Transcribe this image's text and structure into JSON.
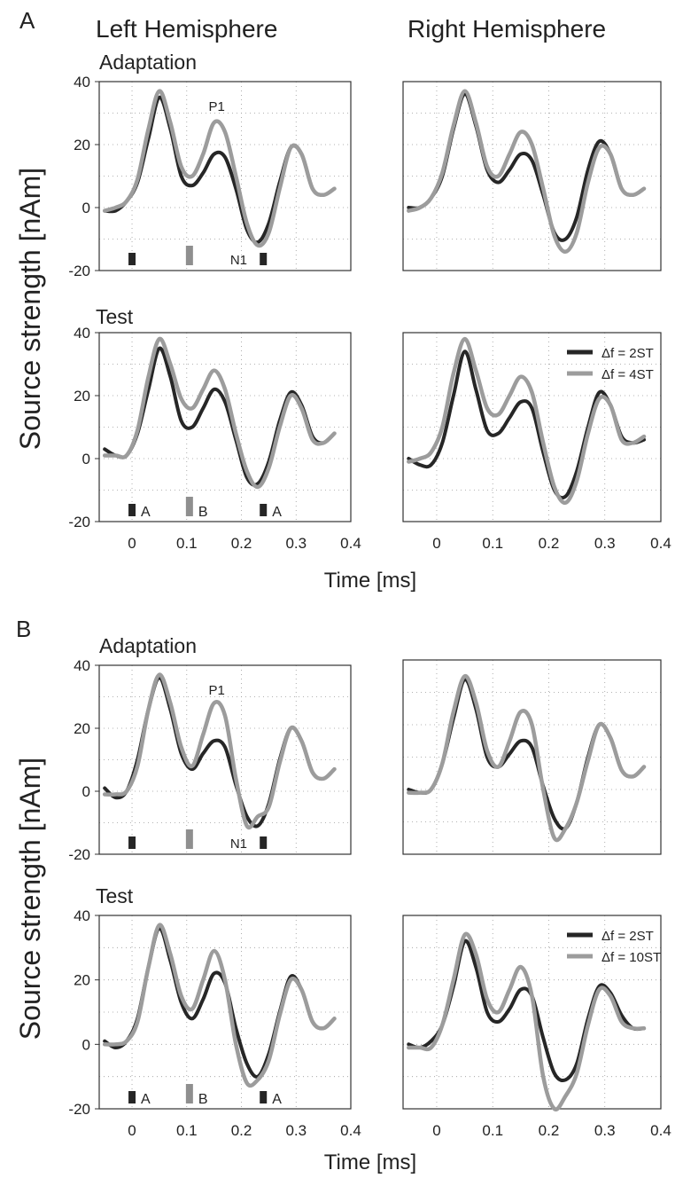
{
  "figure": {
    "sections": [
      {
        "letter": "A",
        "ylabel": "Source strength [nAm]",
        "xlabel": "Time [ms]",
        "col_titles": [
          "Left Hemisphere",
          "Right Hemisphere"
        ],
        "row_titles": [
          "Adaptation",
          "Test"
        ]
      },
      {
        "letter": "B",
        "ylabel": "Source strength [nAm]",
        "xlabel": "Time [ms]",
        "col_titles": [
          "",
          ""
        ],
        "row_titles": [
          "Adaptation",
          "Test"
        ]
      }
    ],
    "colors": {
      "series_dark": "#262626",
      "series_light": "#9c9c9c",
      "marker_dark": "#262626",
      "marker_light": "#8f8f8f",
      "axis": "#333333",
      "grid": "#9a9a9a"
    }
  },
  "chart_data": [
    {
      "type": "line",
      "section": "A",
      "hemisphere": "left",
      "condition": "Adaptation",
      "xlim": [
        -0.06,
        0.4
      ],
      "ylim": [
        -20,
        40
      ],
      "x_ticks": [],
      "y_ticks": [
        40,
        20,
        0,
        -20
      ],
      "grid": true,
      "legend": null,
      "annotations": [
        "P1",
        "N1"
      ],
      "marker_labels": [
        "",
        "",
        ""
      ],
      "series": [
        {
          "x": [
            -0.05,
            -0.03,
            -0.01,
            0.01,
            0.03,
            0.05,
            0.07,
            0.09,
            0.11,
            0.13,
            0.15,
            0.17,
            0.19,
            0.21,
            0.23,
            0.25,
            0.27,
            0.29,
            0.31,
            0.33,
            0.35,
            0.37
          ],
          "y": [
            -1,
            -1,
            2,
            8,
            22,
            35,
            25,
            10,
            7,
            11,
            17,
            16,
            6,
            -7,
            -11,
            -5,
            8,
            19,
            17,
            6,
            4,
            6
          ]
        },
        {
          "x": [
            -0.05,
            -0.03,
            -0.01,
            0.01,
            0.03,
            0.05,
            0.07,
            0.09,
            0.11,
            0.13,
            0.15,
            0.17,
            0.19,
            0.21,
            0.23,
            0.25,
            0.27,
            0.29,
            0.31,
            0.33,
            0.35,
            0.37
          ],
          "y": [
            -1,
            0,
            2,
            9,
            25,
            37,
            27,
            13,
            10,
            17,
            27,
            24,
            10,
            -5,
            -12,
            -8,
            6,
            19,
            17,
            6,
            4,
            6
          ]
        }
      ]
    },
    {
      "type": "line",
      "section": "A",
      "hemisphere": "right",
      "condition": "Adaptation",
      "xlim": [
        -0.06,
        0.4
      ],
      "ylim": [
        -20,
        40
      ],
      "x_ticks": [],
      "y_ticks": [],
      "grid": true,
      "legend": null,
      "annotations": [],
      "marker_labels": [],
      "series": [
        {
          "x": [
            -0.05,
            -0.03,
            -0.01,
            0.01,
            0.03,
            0.05,
            0.07,
            0.09,
            0.11,
            0.13,
            0.15,
            0.17,
            0.19,
            0.21,
            0.23,
            0.25,
            0.27,
            0.29,
            0.31,
            0.33,
            0.35,
            0.37
          ],
          "y": [
            0,
            0,
            3,
            10,
            25,
            36,
            26,
            12,
            8,
            12,
            17,
            15,
            4,
            -8,
            -10,
            -3,
            12,
            21,
            17,
            6,
            4,
            6
          ]
        },
        {
          "x": [
            -0.05,
            -0.03,
            -0.01,
            0.01,
            0.03,
            0.05,
            0.07,
            0.09,
            0.11,
            0.13,
            0.15,
            0.17,
            0.19,
            0.21,
            0.23,
            0.25,
            0.27,
            0.29,
            0.31,
            0.33,
            0.35,
            0.37
          ],
          "y": [
            -1,
            0,
            3,
            11,
            26,
            37,
            27,
            13,
            10,
            17,
            24,
            20,
            6,
            -9,
            -14,
            -8,
            8,
            19,
            17,
            6,
            4,
            6
          ]
        }
      ]
    },
    {
      "type": "line",
      "section": "A",
      "hemisphere": "left",
      "condition": "Test",
      "xlim": [
        -0.06,
        0.4
      ],
      "ylim": [
        -20,
        40
      ],
      "x_ticks": [
        0,
        0.1,
        0.2,
        0.3,
        0.4
      ],
      "y_ticks": [
        40,
        20,
        0,
        -20
      ],
      "grid": true,
      "legend": null,
      "annotations": [],
      "marker_labels": [
        "A",
        "B",
        "A"
      ],
      "series": [
        {
          "x": [
            -0.05,
            -0.03,
            -0.01,
            0.01,
            0.03,
            0.05,
            0.07,
            0.09,
            0.11,
            0.13,
            0.15,
            0.17,
            0.19,
            0.21,
            0.23,
            0.25,
            0.27,
            0.29,
            0.31,
            0.33,
            0.35,
            0.37
          ],
          "y": [
            3,
            1,
            1,
            8,
            22,
            35,
            26,
            12,
            10,
            16,
            22,
            18,
            6,
            -6,
            -8,
            -1,
            12,
            21,
            17,
            7,
            5,
            8
          ]
        },
        {
          "x": [
            -0.05,
            -0.03,
            -0.01,
            0.01,
            0.03,
            0.05,
            0.07,
            0.09,
            0.11,
            0.13,
            0.15,
            0.17,
            0.19,
            0.21,
            0.23,
            0.25,
            0.27,
            0.29,
            0.31,
            0.33,
            0.35,
            0.37
          ],
          "y": [
            1,
            1,
            1,
            9,
            26,
            38,
            30,
            19,
            16,
            22,
            28,
            22,
            8,
            -4,
            -9,
            -3,
            10,
            20,
            16,
            6,
            5,
            8
          ]
        }
      ]
    },
    {
      "type": "line",
      "section": "A",
      "hemisphere": "right",
      "condition": "Test",
      "xlim": [
        -0.06,
        0.4
      ],
      "ylim": [
        -20,
        40
      ],
      "x_ticks": [
        0,
        0.1,
        0.2,
        0.3,
        0.4
      ],
      "y_ticks": [],
      "grid": true,
      "legend": [
        {
          "label": "Δf = 2ST",
          "series": 0
        },
        {
          "label": "Δf = 4ST",
          "series": 1
        }
      ],
      "annotations": [],
      "marker_labels": [],
      "series": [
        {
          "x": [
            -0.05,
            -0.03,
            -0.01,
            0.01,
            0.03,
            0.05,
            0.07,
            0.09,
            0.11,
            0.13,
            0.15,
            0.17,
            0.19,
            0.21,
            0.23,
            0.25,
            0.27,
            0.29,
            0.31,
            0.33,
            0.35,
            0.37
          ],
          "y": [
            0,
            -2,
            -2,
            5,
            20,
            34,
            22,
            9,
            8,
            13,
            18,
            16,
            2,
            -10,
            -12,
            -4,
            10,
            21,
            17,
            7,
            5,
            6
          ]
        },
        {
          "x": [
            -0.05,
            -0.03,
            -0.01,
            0.01,
            0.03,
            0.05,
            0.07,
            0.09,
            0.11,
            0.13,
            0.15,
            0.17,
            0.19,
            0.21,
            0.23,
            0.25,
            0.27,
            0.29,
            0.31,
            0.33,
            0.35,
            0.37
          ],
          "y": [
            -1,
            0,
            2,
            10,
            27,
            38,
            28,
            16,
            14,
            20,
            26,
            21,
            5,
            -9,
            -14,
            -7,
            8,
            19,
            17,
            6,
            5,
            7
          ]
        }
      ]
    },
    {
      "type": "line",
      "section": "B",
      "hemisphere": "left",
      "condition": "Adaptation",
      "xlim": [
        -0.06,
        0.4
      ],
      "ylim": [
        -20,
        40
      ],
      "x_ticks": [],
      "y_ticks": [
        40,
        20,
        0,
        -20
      ],
      "grid": true,
      "legend": null,
      "annotations": [
        "P1",
        "N1"
      ],
      "marker_labels": [
        "",
        "",
        ""
      ],
      "series": [
        {
          "x": [
            -0.05,
            -0.03,
            -0.01,
            0.01,
            0.03,
            0.05,
            0.07,
            0.09,
            0.11,
            0.13,
            0.15,
            0.17,
            0.19,
            0.21,
            0.23,
            0.25,
            0.27,
            0.29,
            0.31,
            0.33,
            0.35,
            0.37
          ],
          "y": [
            1,
            -2,
            0,
            10,
            26,
            36,
            26,
            12,
            7,
            12,
            16,
            14,
            2,
            -8,
            -11,
            -4,
            10,
            20,
            16,
            6,
            4,
            7
          ]
        },
        {
          "x": [
            -0.05,
            -0.03,
            -0.01,
            0.01,
            0.03,
            0.05,
            0.07,
            0.09,
            0.11,
            0.13,
            0.15,
            0.17,
            0.19,
            0.21,
            0.23,
            0.25,
            0.27,
            0.29,
            0.31,
            0.33,
            0.35,
            0.37
          ],
          "y": [
            -1,
            -1,
            0,
            8,
            26,
            37,
            28,
            14,
            8,
            18,
            28,
            24,
            4,
            -11,
            -8,
            -5,
            9,
            20,
            16,
            6,
            4,
            7
          ]
        }
      ]
    },
    {
      "type": "line",
      "section": "B",
      "hemisphere": "right",
      "condition": "Adaptation",
      "xlim": [
        -0.06,
        0.4
      ],
      "ylim": [
        -20,
        40
      ],
      "x_ticks": [],
      "y_ticks": [],
      "grid": true,
      "legend": null,
      "annotations": [],
      "marker_labels": [],
      "series": [
        {
          "x": [
            -0.05,
            -0.03,
            -0.01,
            0.01,
            0.03,
            0.05,
            0.07,
            0.09,
            0.11,
            0.13,
            0.15,
            0.17,
            0.19,
            0.21,
            0.23,
            0.25,
            0.27,
            0.29,
            0.31,
            0.33,
            0.35,
            0.37
          ],
          "y": [
            0,
            -1,
            0,
            8,
            22,
            34,
            25,
            10,
            7,
            11,
            15,
            13,
            1,
            -9,
            -12,
            -4,
            10,
            20,
            16,
            6,
            4,
            7
          ]
        },
        {
          "x": [
            -0.05,
            -0.03,
            -0.01,
            0.01,
            0.03,
            0.05,
            0.07,
            0.09,
            0.11,
            0.13,
            0.15,
            0.17,
            0.19,
            0.21,
            0.23,
            0.25,
            0.27,
            0.29,
            0.31,
            0.33,
            0.35,
            0.37
          ],
          "y": [
            -1,
            -1,
            0,
            8,
            24,
            35,
            27,
            12,
            7,
            15,
            24,
            20,
            0,
            -15,
            -12,
            -4,
            9,
            20,
            16,
            6,
            4,
            7
          ]
        }
      ]
    },
    {
      "type": "line",
      "section": "B",
      "hemisphere": "left",
      "condition": "Test",
      "xlim": [
        -0.06,
        0.4
      ],
      "ylim": [
        -20,
        40
      ],
      "x_ticks": [
        0,
        0.1,
        0.2,
        0.3,
        0.4
      ],
      "y_ticks": [
        40,
        20,
        0,
        -20
      ],
      "grid": true,
      "legend": null,
      "annotations": [],
      "marker_labels": [
        "A",
        "B",
        "A"
      ],
      "series": [
        {
          "x": [
            -0.05,
            -0.03,
            -0.01,
            0.01,
            0.03,
            0.05,
            0.07,
            0.09,
            0.11,
            0.13,
            0.15,
            0.17,
            0.19,
            0.21,
            0.23,
            0.25,
            0.27,
            0.29,
            0.31,
            0.33,
            0.35,
            0.37
          ],
          "y": [
            1,
            -1,
            1,
            8,
            24,
            36,
            26,
            13,
            8,
            14,
            22,
            19,
            5,
            -6,
            -10,
            -3,
            10,
            21,
            17,
            7,
            5,
            8
          ]
        },
        {
          "x": [
            -0.05,
            -0.03,
            -0.01,
            0.01,
            0.03,
            0.05,
            0.07,
            0.09,
            0.11,
            0.13,
            0.15,
            0.17,
            0.19,
            0.21,
            0.23,
            0.25,
            0.27,
            0.29,
            0.31,
            0.33,
            0.35,
            0.37
          ],
          "y": [
            0,
            0,
            1,
            7,
            24,
            37,
            28,
            15,
            11,
            20,
            29,
            20,
            0,
            -12,
            -11,
            -5,
            9,
            20,
            17,
            7,
            5,
            8
          ]
        }
      ]
    },
    {
      "type": "line",
      "section": "B",
      "hemisphere": "right",
      "condition": "Test",
      "xlim": [
        -0.06,
        0.4
      ],
      "ylim": [
        -20,
        40
      ],
      "x_ticks": [
        0,
        0.1,
        0.2,
        0.3,
        0.4
      ],
      "y_ticks": [],
      "grid": true,
      "legend": [
        {
          "label": "Δf = 2ST",
          "series": 0
        },
        {
          "label": "Δf = 10ST",
          "series": 1
        }
      ],
      "annotations": [],
      "marker_labels": [],
      "series": [
        {
          "x": [
            -0.05,
            -0.03,
            -0.01,
            0.01,
            0.03,
            0.05,
            0.07,
            0.09,
            0.11,
            0.13,
            0.15,
            0.17,
            0.19,
            0.21,
            0.23,
            0.25,
            0.27,
            0.29,
            0.31,
            0.33,
            0.35,
            0.37
          ],
          "y": [
            0,
            -1,
            1,
            6,
            18,
            32,
            24,
            10,
            7,
            11,
            17,
            15,
            2,
            -9,
            -11,
            -6,
            8,
            18,
            16,
            9,
            5,
            5
          ]
        },
        {
          "x": [
            -0.05,
            -0.03,
            -0.01,
            0.01,
            0.03,
            0.05,
            0.07,
            0.09,
            0.11,
            0.13,
            0.15,
            0.17,
            0.19,
            0.21,
            0.23,
            0.25,
            0.27,
            0.29,
            0.31,
            0.33,
            0.35,
            0.37
          ],
          "y": [
            -1,
            -1,
            -1,
            6,
            20,
            34,
            28,
            14,
            10,
            17,
            24,
            15,
            -10,
            -20,
            -16,
            -9,
            6,
            17,
            15,
            7,
            5,
            5
          ]
        }
      ]
    }
  ]
}
